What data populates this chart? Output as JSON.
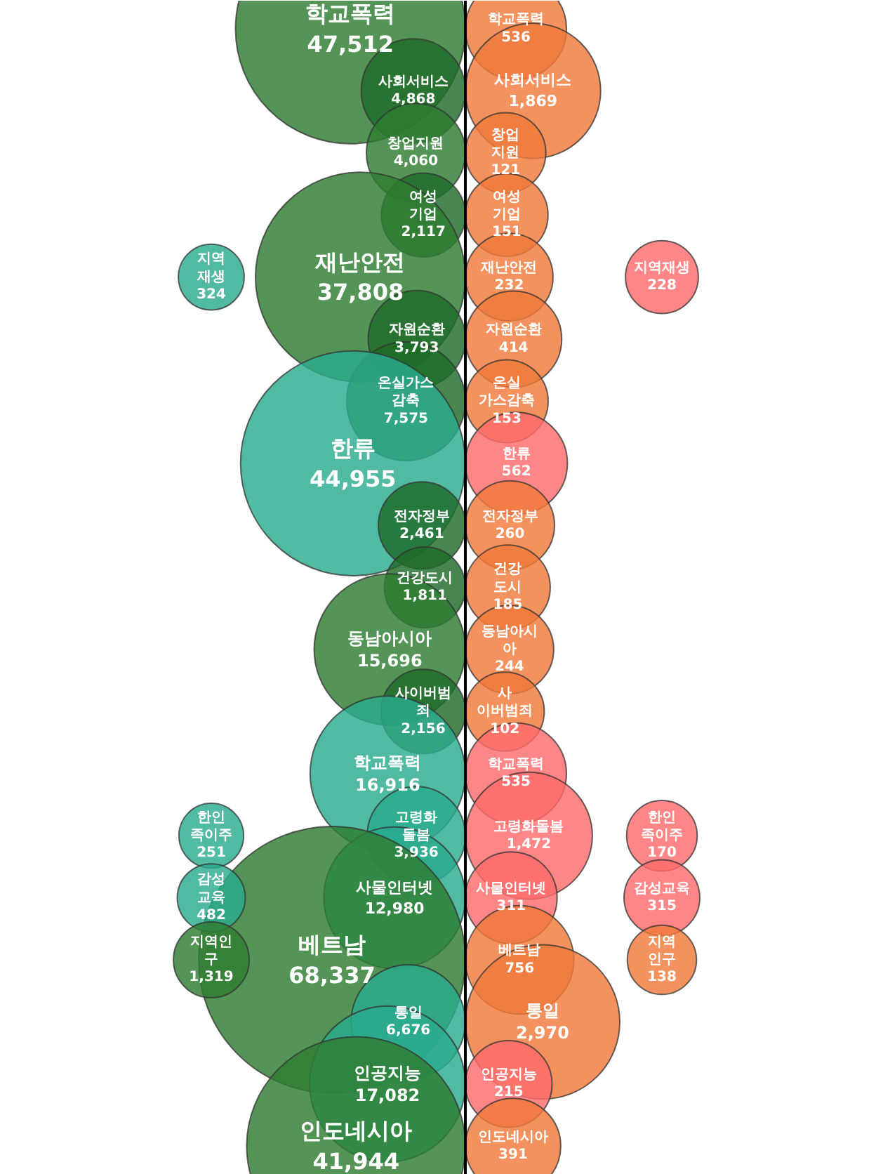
{
  "chart_data": {
    "type": "other",
    "value_labels": [
      "47,512",
      "4,868",
      "4,060",
      "2,117",
      "37,808",
      "3,793",
      "7,575",
      "44,955",
      "2,461",
      "1,811",
      "15,696",
      "2,156",
      "16,916",
      "3,936",
      "12,980",
      "68,337",
      "6,676",
      "17,082",
      "41,944",
      "536",
      "1,869",
      "121",
      "151",
      "232",
      "414",
      "153",
      "562",
      "260",
      "185",
      "244",
      "102",
      "535",
      "1,472",
      "311",
      "756",
      "2,970",
      "215",
      "391",
      "324",
      "251",
      "482",
      "1,319",
      "228",
      "170",
      "315",
      "138"
    ],
    "categories": [
      "학교폭력",
      "사회서비스",
      "창업지원",
      "여성\n기업",
      "재난안전",
      "자원순환",
      "온실가스\n감축",
      "한류",
      "전자정부",
      "건강도시",
      "동남아시아",
      "사이버범\n죄",
      "학교폭력",
      "고령화\n돌봄",
      "사물인터넷",
      "베트남",
      "통일",
      "인공지능",
      "인도네시아",
      "학교폭력",
      "사회서비스",
      "창업\n지원",
      "여성\n기업",
      "재난안전",
      "자원순환",
      "온실\n가스감축",
      "한류",
      "전자정부",
      "건강\n도시",
      "동남아시\n아",
      "사\n이버범죄",
      "학교폭력",
      "고령화돌봄",
      "사물인터넷",
      "베트남",
      "통일",
      "인공지능",
      "인도네시아",
      "지역\n재생",
      "한인\n족이주",
      "감성\n교육",
      "지역인\n구",
      "지역재생",
      "한인\n족이주",
      "감성교육",
      "지역\n인구"
    ],
    "values": [
      47512,
      4868,
      4060,
      2117,
      37808,
      3793,
      7575,
      44955,
      2461,
      1811,
      15696,
      2156,
      16916,
      3936,
      12980,
      68337,
      6676,
      17082,
      41944,
      536,
      1869,
      121,
      151,
      232,
      414,
      153,
      562,
      260,
      185,
      244,
      102,
      535,
      1472,
      311,
      756,
      2970,
      215,
      391,
      324,
      251,
      482,
      1319,
      228,
      170,
      315,
      138
    ],
    "colors": [
      "#2e7d32",
      "#1f6b2a",
      "#2e7d32",
      "#1f6b2a",
      "#2e7d32",
      "#1f6b2a",
      "#1f6b2a",
      "#2bab8f",
      "#1f6b2a",
      "#1f6b2a",
      "#2e7d32",
      "#1f6b2a",
      "#2bab8f",
      "#2bab8f",
      "#2bab8f",
      "#2e7d32",
      "#2bab8f",
      "#2bab8f",
      "#2e7d32",
      "#f07a3a",
      "#f07a3a",
      "#f07a3a",
      "#f07a3a",
      "#f07a3a",
      "#f07a3a",
      "#f07a3a",
      "#ff6b6b",
      "#f07a3a",
      "#f07a3a",
      "#f07a3a",
      "#f07a3a",
      "#ff6b6b",
      "#ff6b6b",
      "#ff6b6b",
      "#f07a3a",
      "#f07a3a",
      "#ff6b6b",
      "#f07a3a",
      "#2bab8f",
      "#2bab8f",
      "#2bab8f",
      "#2e7d32",
      "#ff6b6b",
      "#ff6b6b",
      "#ff6b6b",
      "#f07a3a"
    ]
  }
}
